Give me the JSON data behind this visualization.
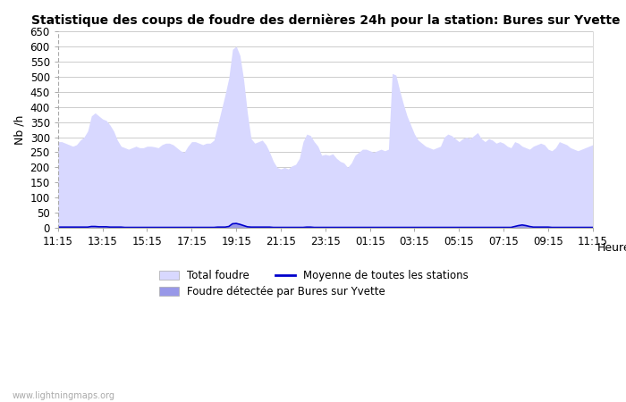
{
  "title": "Statistique des coups de foudre des dernières 24h pour la station: Bures sur Yvette",
  "ylabel": "Nb /h",
  "xlabel": "Heure",
  "watermark": "www.lightningmaps.org",
  "ylim": [
    0,
    650
  ],
  "yticks": [
    0,
    50,
    100,
    150,
    200,
    250,
    300,
    350,
    400,
    450,
    500,
    550,
    600,
    650
  ],
  "xtick_labels": [
    "11:15",
    "13:15",
    "15:15",
    "17:15",
    "19:15",
    "21:15",
    "23:15",
    "01:15",
    "03:15",
    "05:15",
    "07:15",
    "09:15",
    "11:15"
  ],
  "color_total": "#d8d8ff",
  "color_local": "#9898e8",
  "color_mean": "#0000cc",
  "background_color": "#ffffff",
  "grid_color": "#cccccc",
  "total_foudre": [
    285,
    285,
    280,
    275,
    270,
    275,
    290,
    300,
    320,
    370,
    380,
    370,
    360,
    355,
    340,
    320,
    290,
    270,
    265,
    260,
    265,
    270,
    265,
    265,
    270,
    270,
    268,
    265,
    275,
    280,
    280,
    275,
    265,
    255,
    250,
    270,
    285,
    285,
    280,
    275,
    280,
    280,
    290,
    340,
    390,
    440,
    495,
    590,
    600,
    570,
    490,
    380,
    295,
    280,
    285,
    290,
    275,
    250,
    220,
    200,
    195,
    200,
    195,
    205,
    210,
    230,
    285,
    310,
    305,
    285,
    270,
    240,
    243,
    240,
    245,
    230,
    220,
    215,
    200,
    215,
    240,
    250,
    260,
    260,
    255,
    250,
    255,
    260,
    255,
    260,
    510,
    505,
    455,
    410,
    370,
    340,
    310,
    290,
    280,
    270,
    265,
    260,
    265,
    270,
    300,
    310,
    305,
    295,
    285,
    295,
    300,
    295,
    305,
    315,
    295,
    285,
    295,
    290,
    280,
    285,
    280,
    270,
    265,
    285,
    280,
    270,
    265,
    260,
    270,
    275,
    280,
    275,
    260,
    255,
    265,
    285,
    280,
    275,
    265,
    260,
    255,
    260,
    265,
    270,
    275
  ],
  "local_foudre": [
    3,
    3,
    3,
    3,
    3,
    3,
    3,
    3,
    3,
    5,
    5,
    4,
    4,
    4,
    3,
    3,
    3,
    3,
    2,
    2,
    2,
    2,
    2,
    2,
    2,
    2,
    2,
    2,
    2,
    2,
    2,
    2,
    2,
    2,
    2,
    2,
    2,
    2,
    2,
    2,
    2,
    2,
    2,
    3,
    3,
    3,
    5,
    14,
    15,
    12,
    8,
    4,
    3,
    3,
    3,
    3,
    3,
    3,
    2,
    2,
    2,
    2,
    2,
    2,
    2,
    2,
    2,
    3,
    3,
    2,
    2,
    2,
    2,
    2,
    2,
    2,
    2,
    2,
    2,
    2,
    2,
    2,
    2,
    2,
    2,
    2,
    2,
    2,
    2,
    2,
    2,
    2,
    2,
    2,
    2,
    2,
    2,
    2,
    2,
    2,
    2,
    2,
    2,
    2,
    2,
    2,
    2,
    2,
    2,
    2,
    2,
    2,
    2,
    2,
    2,
    2,
    2,
    2,
    2,
    2,
    2,
    2,
    2,
    5,
    8,
    10,
    8,
    5,
    3,
    3,
    3,
    3,
    3,
    2,
    2,
    2,
    2,
    2,
    2,
    2,
    2,
    2,
    2,
    2,
    2
  ],
  "mean_line": [
    3,
    3,
    3,
    3,
    3,
    3,
    3,
    3,
    3,
    5,
    5,
    4,
    4,
    4,
    3,
    3,
    3,
    3,
    2,
    2,
    2,
    2,
    2,
    2,
    2,
    2,
    2,
    2,
    2,
    2,
    2,
    2,
    2,
    2,
    2,
    2,
    2,
    2,
    2,
    2,
    2,
    2,
    2,
    3,
    3,
    3,
    5,
    14,
    15,
    12,
    8,
    4,
    3,
    3,
    3,
    3,
    3,
    3,
    2,
    2,
    2,
    2,
    2,
    2,
    2,
    2,
    2,
    3,
    3,
    2,
    2,
    2,
    2,
    2,
    2,
    2,
    2,
    2,
    2,
    2,
    2,
    2,
    2,
    2,
    2,
    2,
    2,
    2,
    2,
    2,
    2,
    2,
    2,
    2,
    2,
    2,
    2,
    2,
    2,
    2,
    2,
    2,
    2,
    2,
    2,
    2,
    2,
    2,
    2,
    2,
    2,
    2,
    2,
    2,
    2,
    2,
    2,
    2,
    2,
    2,
    2,
    2,
    2,
    5,
    8,
    10,
    8,
    5,
    3,
    3,
    3,
    3,
    3,
    2,
    2,
    2,
    2,
    2,
    2,
    2,
    2,
    2,
    2,
    2,
    2
  ]
}
